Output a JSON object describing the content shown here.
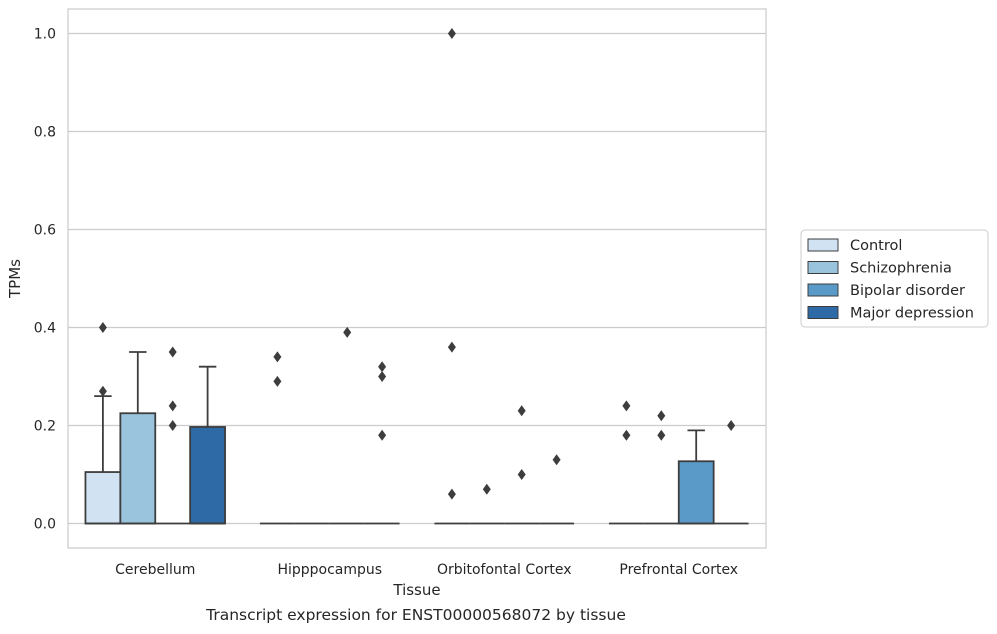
{
  "caption": "Transcript expression for ENST00000568072 by tissue",
  "chart_data": {
    "type": "box",
    "title": "",
    "xlabel": "Tissue",
    "ylabel": "TPMs",
    "ylim": [
      -0.05,
      1.05
    ],
    "yticks": [
      0.0,
      0.2,
      0.4,
      0.6,
      0.8,
      1.0
    ],
    "ytick_labels": [
      "0.0",
      "0.2",
      "0.4",
      "0.6",
      "0.8",
      "1.0"
    ],
    "grid": "horizontal",
    "legend_position": "right",
    "categories": [
      "Cerebellum",
      "Hipppocampus",
      "Orbitofontal Cortex",
      "Prefrontal Cortex"
    ],
    "series": [
      {
        "name": "Control",
        "color": "#d1e2f2",
        "boxes": [
          {
            "q1": 0.0,
            "median": 0.0,
            "q3": 0.105,
            "whisker_low": 0.0,
            "whisker_high": 0.26,
            "outliers": [
              0.27,
              0.4
            ]
          },
          {
            "q1": 0.0,
            "median": 0.0,
            "q3": 0.0,
            "whisker_low": 0.0,
            "whisker_high": 0.0,
            "outliers": [
              0.29,
              0.34
            ]
          },
          {
            "q1": 0.0,
            "median": 0.0,
            "q3": 0.0,
            "whisker_low": 0.0,
            "whisker_high": 0.0,
            "outliers": [
              0.06,
              0.36,
              1.0
            ]
          },
          {
            "q1": 0.0,
            "median": 0.0,
            "q3": 0.0,
            "whisker_low": 0.0,
            "whisker_high": 0.0,
            "outliers": [
              0.18,
              0.24
            ]
          }
        ]
      },
      {
        "name": "Schizophrenia",
        "color": "#9ac3de",
        "boxes": [
          {
            "q1": 0.0,
            "median": 0.0,
            "q3": 0.225,
            "whisker_low": 0.0,
            "whisker_high": 0.35,
            "outliers": []
          },
          {
            "q1": 0.0,
            "median": 0.0,
            "q3": 0.0,
            "whisker_low": 0.0,
            "whisker_high": 0.0,
            "outliers": []
          },
          {
            "q1": 0.0,
            "median": 0.0,
            "q3": 0.0,
            "whisker_low": 0.0,
            "whisker_high": 0.0,
            "outliers": [
              0.07
            ]
          },
          {
            "q1": 0.0,
            "median": 0.0,
            "q3": 0.0,
            "whisker_low": 0.0,
            "whisker_high": 0.0,
            "outliers": [
              0.18,
              0.22
            ]
          }
        ]
      },
      {
        "name": "Bipolar disorder",
        "color": "#5a9ac8",
        "boxes": [
          {
            "q1": 0.0,
            "median": 0.0,
            "q3": 0.0,
            "whisker_low": 0.0,
            "whisker_high": 0.0,
            "outliers": [
              0.2,
              0.24,
              0.35
            ]
          },
          {
            "q1": 0.0,
            "median": 0.0,
            "q3": 0.0,
            "whisker_low": 0.0,
            "whisker_high": 0.0,
            "outliers": [
              0.39
            ]
          },
          {
            "q1": 0.0,
            "median": 0.0,
            "q3": 0.0,
            "whisker_low": 0.0,
            "whisker_high": 0.0,
            "outliers": [
              0.1,
              0.23
            ]
          },
          {
            "q1": 0.0,
            "median": 0.0,
            "q3": 0.127,
            "whisker_low": 0.0,
            "whisker_high": 0.19,
            "outliers": []
          }
        ]
      },
      {
        "name": "Major depression",
        "color": "#2d6aa6",
        "boxes": [
          {
            "q1": 0.0,
            "median": 0.0,
            "q3": 0.197,
            "whisker_low": 0.0,
            "whisker_high": 0.32,
            "outliers": []
          },
          {
            "q1": 0.0,
            "median": 0.0,
            "q3": 0.0,
            "whisker_low": 0.0,
            "whisker_high": 0.0,
            "outliers": [
              0.18,
              0.3,
              0.32
            ]
          },
          {
            "q1": 0.0,
            "median": 0.0,
            "q3": 0.0,
            "whisker_low": 0.0,
            "whisker_high": 0.0,
            "outliers": [
              0.13
            ]
          },
          {
            "q1": 0.0,
            "median": 0.0,
            "q3": 0.0,
            "whisker_low": 0.0,
            "whisker_high": 0.0,
            "outliers": [
              0.2
            ]
          }
        ]
      }
    ]
  }
}
